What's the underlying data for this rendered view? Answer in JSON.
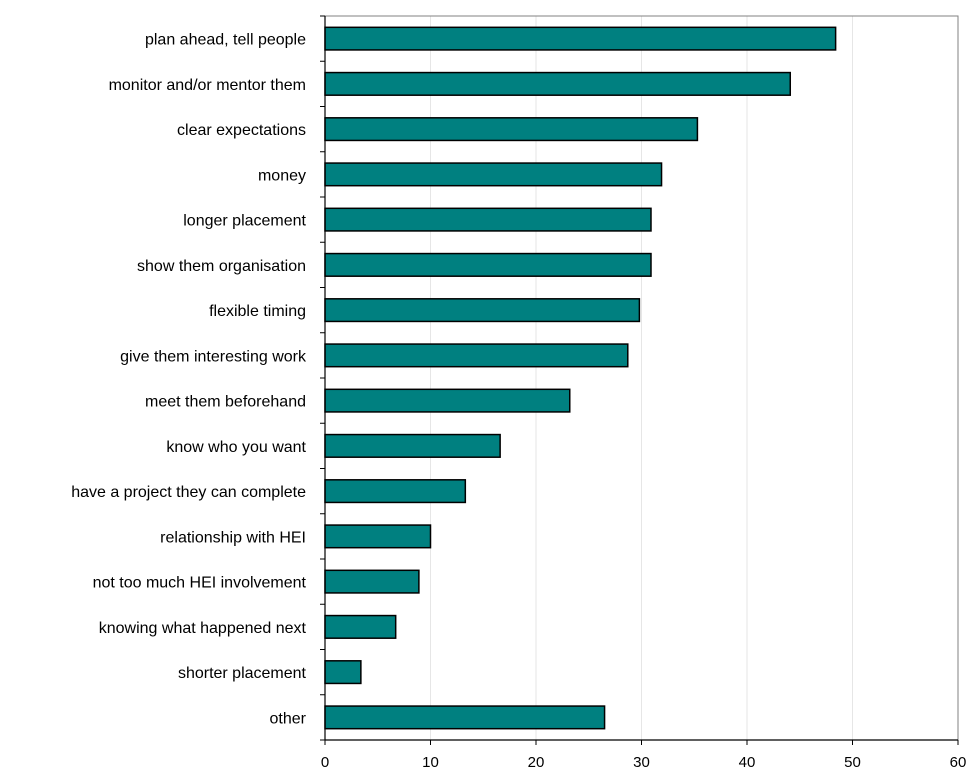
{
  "chart_data": {
    "type": "bar",
    "orientation": "horizontal",
    "title": "",
    "xlabel": "",
    "ylabel": "",
    "categories": [
      "plan ahead, tell people",
      "monitor and/or mentor them",
      "clear expectations",
      "money",
      "longer placement",
      "show them organisation",
      "flexible timing",
      "give them interesting work",
      "meet them beforehand",
      "know who you want",
      "have a project they can complete",
      "relationship with HEI",
      "not too much HEI involvement",
      "knowing what happened next",
      "shorter placement",
      "other"
    ],
    "values": [
      48.4,
      44.1,
      35.3,
      31.9,
      30.9,
      30.9,
      29.8,
      28.7,
      23.2,
      16.6,
      13.3,
      10.0,
      8.9,
      6.7,
      3.4,
      26.5
    ],
    "xlim": [
      0,
      60
    ],
    "xticks": [
      0,
      10,
      20,
      30,
      40,
      50,
      60
    ],
    "xtick_labels": [
      "0",
      "10",
      "20",
      "30",
      "40",
      "50",
      "60"
    ],
    "grid": true,
    "legend": "none",
    "bar_color": "#008080",
    "gridline_color": "#e6e6e6"
  }
}
